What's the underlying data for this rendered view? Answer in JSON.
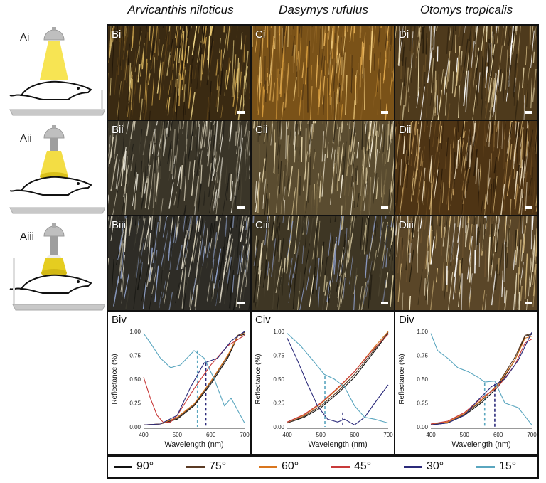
{
  "species": [
    "Arvicanthis niloticus",
    "Dasymys rufulus",
    "Otomys tropicalis"
  ],
  "setup_labels": [
    "Ai",
    "Aii",
    "Aiii"
  ],
  "photo_labels": [
    [
      "Bi",
      "Ci",
      "Di"
    ],
    [
      "Bii",
      "Cii",
      "Dii"
    ],
    [
      "Biii",
      "Ciii",
      "Diii"
    ]
  ],
  "graph_labels": [
    "Biv",
    "Civ",
    "Div"
  ],
  "legend": [
    {
      "label": "90°",
      "color": "#111111"
    },
    {
      "label": "75°",
      "color": "#5a3a24"
    },
    {
      "label": "60°",
      "color": "#d9761e"
    },
    {
      "label": "45°",
      "color": "#c83a3a"
    },
    {
      "label": "30°",
      "color": "#2b2a7a"
    },
    {
      "label": "15°",
      "color": "#5aa6bf"
    }
  ],
  "axes": {
    "xlabel": "Wavelength (nm)",
    "ylabel": "Reflectance (%)",
    "xticks": [
      "400",
      "500",
      "600",
      "700"
    ],
    "yticks": [
      "0.00",
      "0.25",
      "0.50",
      "0.75",
      "1.00"
    ]
  },
  "chart_data": [
    {
      "type": "line",
      "xlim": [
        400,
        700
      ],
      "ylim": [
        0,
        1
      ],
      "xlabel": "Wavelength (nm)",
      "ylabel": "Reflectance (%)",
      "series": [
        {
          "color": "#111111",
          "x": [
            400,
            450,
            500,
            550,
            600,
            650,
            680,
            700
          ],
          "y": [
            0.02,
            0.03,
            0.08,
            0.22,
            0.45,
            0.72,
            0.95,
            0.97
          ]
        },
        {
          "color": "#5a3a24",
          "x": [
            400,
            450,
            500,
            550,
            600,
            650,
            680,
            700
          ],
          "y": [
            0.02,
            0.03,
            0.09,
            0.23,
            0.47,
            0.74,
            0.96,
            0.99
          ]
        },
        {
          "color": "#d9761e",
          "x": [
            400,
            450,
            500,
            550,
            600,
            650,
            680,
            700
          ],
          "y": [
            0.02,
            0.03,
            0.1,
            0.24,
            0.48,
            0.75,
            0.95,
            0.98
          ]
        },
        {
          "color": "#c83a3a",
          "x": [
            400,
            420,
            440,
            460,
            480,
            500,
            550,
            600,
            650,
            700
          ],
          "y": [
            0.52,
            0.3,
            0.12,
            0.04,
            0.05,
            0.12,
            0.4,
            0.65,
            0.85,
            0.96
          ]
        },
        {
          "color": "#2b2a7a",
          "x": [
            400,
            450,
            500,
            540,
            580,
            620,
            660,
            700
          ],
          "y": [
            0.02,
            0.03,
            0.12,
            0.42,
            0.67,
            0.72,
            0.9,
            1.0
          ]
        },
        {
          "color": "#5aa6bf",
          "x": [
            400,
            420,
            450,
            480,
            510,
            550,
            580,
            610,
            640,
            660,
            700
          ],
          "y": [
            0.98,
            0.88,
            0.72,
            0.62,
            0.65,
            0.8,
            0.72,
            0.5,
            0.22,
            0.3,
            0.04
          ]
        }
      ],
      "markers": [
        {
          "x": 560,
          "y": 0.8,
          "color": "#5aa6bf"
        },
        {
          "x": 585,
          "y": 0.67,
          "color": "#2b2a7a"
        }
      ]
    },
    {
      "type": "line",
      "xlim": [
        400,
        700
      ],
      "ylim": [
        0,
        1
      ],
      "xlabel": "Wavelength (nm)",
      "ylabel": "Reflectance (%)",
      "series": [
        {
          "color": "#111111",
          "x": [
            400,
            450,
            500,
            550,
            600,
            650,
            700
          ],
          "y": [
            0.04,
            0.1,
            0.2,
            0.35,
            0.52,
            0.75,
            0.98
          ]
        },
        {
          "color": "#5a3a24",
          "x": [
            400,
            450,
            500,
            550,
            600,
            650,
            700
          ],
          "y": [
            0.04,
            0.11,
            0.22,
            0.37,
            0.55,
            0.77,
            0.99
          ]
        },
        {
          "color": "#d9761e",
          "x": [
            400,
            450,
            500,
            550,
            600,
            650,
            700
          ],
          "y": [
            0.05,
            0.12,
            0.24,
            0.4,
            0.58,
            0.8,
            1.0
          ]
        },
        {
          "color": "#c83a3a",
          "x": [
            400,
            450,
            500,
            550,
            600,
            650,
            700
          ],
          "y": [
            0.05,
            0.13,
            0.25,
            0.41,
            0.58,
            0.79,
            0.97
          ]
        },
        {
          "color": "#2b2a7a",
          "x": [
            400,
            430,
            460,
            490,
            520,
            550,
            570,
            600,
            630,
            660,
            700
          ],
          "y": [
            0.93,
            0.7,
            0.45,
            0.22,
            0.08,
            0.05,
            0.08,
            0.02,
            0.1,
            0.25,
            0.44
          ]
        },
        {
          "color": "#5aa6bf",
          "x": [
            400,
            440,
            480,
            510,
            540,
            570,
            600,
            630,
            660,
            700
          ],
          "y": [
            0.98,
            0.85,
            0.68,
            0.55,
            0.5,
            0.42,
            0.22,
            0.1,
            0.08,
            0.04
          ]
        }
      ],
      "markers": [
        {
          "x": 512,
          "y": 0.53,
          "color": "#5aa6bf"
        },
        {
          "x": 565,
          "y": 0.15,
          "color": "#2b2a7a"
        }
      ]
    },
    {
      "type": "line",
      "xlim": [
        400,
        700
      ],
      "ylim": [
        0,
        1
      ],
      "xlabel": "Wavelength (nm)",
      "ylabel": "Reflectance (%)",
      "series": [
        {
          "color": "#111111",
          "x": [
            400,
            450,
            500,
            550,
            600,
            650,
            680,
            700
          ],
          "y": [
            0.02,
            0.04,
            0.12,
            0.25,
            0.42,
            0.7,
            0.95,
            0.97
          ]
        },
        {
          "color": "#5a3a24",
          "x": [
            400,
            450,
            500,
            550,
            600,
            650,
            680,
            700
          ],
          "y": [
            0.02,
            0.05,
            0.13,
            0.27,
            0.45,
            0.73,
            0.96,
            0.98
          ]
        },
        {
          "color": "#d9761e",
          "x": [
            400,
            450,
            500,
            550,
            600,
            650,
            680,
            700
          ],
          "y": [
            0.03,
            0.05,
            0.14,
            0.28,
            0.44,
            0.7,
            0.93,
            0.95
          ]
        },
        {
          "color": "#c83a3a",
          "x": [
            400,
            450,
            500,
            550,
            600,
            650,
            680,
            700
          ],
          "y": [
            0.03,
            0.06,
            0.15,
            0.3,
            0.42,
            0.65,
            0.88,
            0.92
          ]
        },
        {
          "color": "#2b2a7a",
          "x": [
            400,
            450,
            500,
            540,
            580,
            620,
            660,
            700
          ],
          "y": [
            0.02,
            0.04,
            0.12,
            0.28,
            0.42,
            0.5,
            0.7,
            0.99
          ]
        },
        {
          "color": "#5aa6bf",
          "x": [
            400,
            420,
            450,
            480,
            510,
            540,
            560,
            590,
            620,
            660,
            700
          ],
          "y": [
            0.98,
            0.8,
            0.72,
            0.62,
            0.58,
            0.52,
            0.47,
            0.48,
            0.25,
            0.2,
            0.02
          ]
        }
      ],
      "markers": [
        {
          "x": 560,
          "y": 0.46,
          "color": "#5aa6bf"
        },
        {
          "x": 590,
          "y": 0.45,
          "color": "#2b2a7a"
        }
      ]
    }
  ]
}
